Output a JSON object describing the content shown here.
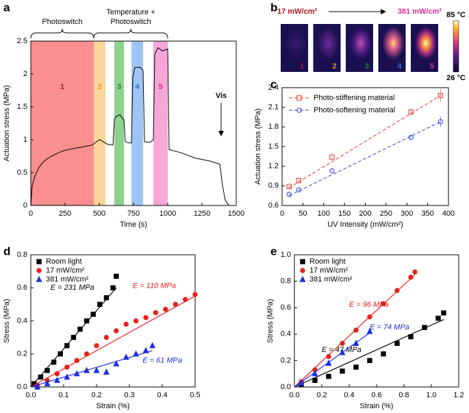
{
  "chart_data": [
    {
      "type": "line",
      "panel": "a",
      "xlabel": "Time (s)",
      "ylabel": "Actuation stress (MPa)",
      "xlim": [
        0,
        1500
      ],
      "xticks": [
        0,
        250,
        500,
        750,
        1000,
        1250,
        1500
      ],
      "ylim": [
        0,
        2.5
      ],
      "yticks": [
        0,
        0.5,
        1.0,
        1.5,
        2.0,
        2.5
      ],
      "color": "#000000",
      "x": [
        0,
        10,
        30,
        60,
        100,
        150,
        200,
        250,
        300,
        350,
        400,
        450,
        480,
        500,
        520,
        545,
        560,
        600,
        610,
        620,
        650,
        680,
        690,
        720,
        735,
        745,
        760,
        800,
        820,
        830,
        870,
        895,
        905,
        930,
        960,
        1000,
        1010,
        1100,
        1200,
        1300,
        1380,
        1400,
        1420,
        1440,
        1450
      ],
      "values": [
        0,
        0.3,
        0.45,
        0.58,
        0.68,
        0.75,
        0.8,
        0.84,
        0.86,
        0.88,
        0.9,
        0.92,
        0.97,
        1.0,
        0.98,
        0.95,
        0.93,
        0.92,
        1.3,
        1.35,
        1.38,
        1.3,
        0.97,
        0.95,
        0.95,
        1.95,
        2.1,
        2.1,
        2.05,
        0.97,
        0.96,
        1.0,
        2.3,
        2.4,
        2.35,
        2.38,
        0.85,
        0.8,
        0.72,
        0.68,
        0.63,
        0.3,
        0.08,
        0.02,
        0.0
      ],
      "regions": [
        {
          "label": "1",
          "x": [
            0,
            460
          ],
          "color": "#f98f8f",
          "label_color": "#b0151a"
        },
        {
          "label": "2",
          "x": [
            460,
            545
          ],
          "color": "#fbd59a",
          "label_color": "#e89a1a"
        },
        {
          "label": "3",
          "x": [
            610,
            680
          ],
          "color": "#8fd18f",
          "label_color": "#1a8a1a"
        },
        {
          "label": "4",
          "x": [
            735,
            820
          ],
          "color": "#9fc4f5",
          "label_color": "#2a6fd6"
        },
        {
          "label": "5",
          "x": [
            895,
            1000
          ],
          "color": "#f7a6d6",
          "label_color": "#d0309a"
        }
      ],
      "annotations": [
        "Photoswitch",
        "Temperature +",
        "Photoswitch",
        "Vis"
      ]
    },
    {
      "type": "image",
      "panel": "b",
      "low_label": "17 mW/cm²",
      "high_label": "381 mW/cm²",
      "images": [
        "1",
        "2",
        "3",
        "4",
        "5"
      ],
      "image_label_colors": [
        "#b0151a",
        "#e89a1a",
        "#1a8a1a",
        "#2a6fd6",
        "#d0309a"
      ],
      "colorbar_labels": [
        "85 °C",
        "26 °C"
      ]
    },
    {
      "type": "errorline",
      "panel": "c",
      "xlabel": "UV Intensity (mW/cm²)",
      "ylabel": "Actuation stress (MPa)",
      "xlim": [
        0,
        400
      ],
      "xticks": [
        0,
        50,
        100,
        150,
        200,
        250,
        300,
        350,
        400
      ],
      "ylim": [
        0.6,
        2.4
      ],
      "yticks": [
        0.6,
        0.9,
        1.2,
        1.5,
        1.8,
        2.1,
        2.4
      ],
      "series": [
        {
          "name": "Photo-stiffening material",
          "color": "#e8312b",
          "marker": "square",
          "x": [
            17,
            40,
            120,
            310,
            381
          ],
          "values": [
            0.89,
            0.98,
            1.34,
            2.03,
            2.28
          ],
          "errors": [
            0.02,
            0.02,
            0.02,
            0.05,
            0.1
          ],
          "fit": {
            "x": [
              17,
              381
            ],
            "values": [
              0.87,
              2.28
            ]
          }
        },
        {
          "name": "Photo-softening material",
          "color": "#2b3fd8",
          "marker": "circle",
          "x": [
            17,
            40,
            120,
            310,
            381
          ],
          "values": [
            0.77,
            0.84,
            1.13,
            1.64,
            1.88
          ],
          "errors": [
            0.02,
            0.02,
            0.02,
            0.03,
            0.08
          ],
          "fit": {
            "x": [
              17,
              381
            ],
            "values": [
              0.75,
              1.88
            ]
          }
        }
      ]
    },
    {
      "type": "scatter",
      "panel": "d",
      "xlabel": "Strain (%)",
      "ylabel": "Stress (MPa)",
      "xlim": [
        0,
        0.5
      ],
      "xticks": [
        {
          "value": 0,
          "label": "0.0"
        },
        0.1,
        0.2,
        0.3,
        0.4,
        0.5
      ],
      "ylim": [
        0,
        0.8
      ],
      "yticks": [
        {
          "value": 0,
          "label": "0.0"
        },
        0.2,
        0.4,
        0.6,
        0.8
      ],
      "series": [
        {
          "name": "Room light",
          "color": "#000000",
          "marker": "square",
          "annotation": "E = 231 MPa",
          "x": [
            0.01,
            0.03,
            0.05,
            0.07,
            0.09,
            0.11,
            0.13,
            0.15,
            0.17,
            0.19,
            0.21,
            0.23,
            0.25,
            0.26
          ],
          "values": [
            0.02,
            0.06,
            0.1,
            0.15,
            0.2,
            0.25,
            0.3,
            0.35,
            0.4,
            0.44,
            0.5,
            0.54,
            0.6,
            0.67
          ],
          "fit": {
            "x": [
              0,
              0.26
            ],
            "values": [
              0,
              0.6
            ]
          }
        },
        {
          "name": "17 mW/cm²",
          "color": "#e8211b",
          "marker": "circle",
          "annotation": "E = 110 MPa",
          "x": [
            0.02,
            0.05,
            0.08,
            0.11,
            0.14,
            0.17,
            0.2,
            0.23,
            0.26,
            0.29,
            0.32,
            0.35,
            0.38,
            0.41,
            0.44,
            0.47,
            0.5
          ],
          "values": [
            0.01,
            0.04,
            0.08,
            0.12,
            0.16,
            0.2,
            0.25,
            0.3,
            0.34,
            0.38,
            0.4,
            0.42,
            0.45,
            0.47,
            0.5,
            0.53,
            0.56
          ],
          "fit": {
            "x": [
              0,
              0.5
            ],
            "values": [
              0,
              0.55
            ]
          }
        },
        {
          "name": "381 mW/cm²",
          "color": "#1f2fe0",
          "marker": "triangle",
          "annotation": "E = 61 MPa",
          "x": [
            0.02,
            0.05,
            0.08,
            0.11,
            0.14,
            0.17,
            0.2,
            0.23,
            0.26,
            0.29,
            0.32,
            0.35,
            0.37
          ],
          "values": [
            0.0,
            0.02,
            0.04,
            0.06,
            0.08,
            0.1,
            0.1,
            0.09,
            0.14,
            0.18,
            0.2,
            0.22,
            0.25
          ],
          "fit": {
            "x": [
              0,
              0.37
            ],
            "values": [
              0,
              0.22
            ]
          }
        }
      ]
    },
    {
      "type": "scatter",
      "panel": "e",
      "xlabel": "Strain (%)",
      "ylabel": "Stress (MPa)",
      "xlim": [
        0,
        1.2
      ],
      "xticks": [
        {
          "value": 0,
          "label": "0.0"
        },
        0.2,
        0.4,
        0.6,
        0.8,
        {
          "value": 1,
          "label": "1.0"
        },
        1.2
      ],
      "ylim": [
        0,
        1.0
      ],
      "yticks": [
        {
          "value": 0,
          "label": "0.0"
        },
        0.2,
        0.4,
        0.6,
        0.8,
        {
          "value": 1,
          "label": "1.0"
        }
      ],
      "series": [
        {
          "name": "Room light",
          "color": "#000000",
          "marker": "square",
          "annotation": "E = 47 MPa",
          "x": [
            0.05,
            0.15,
            0.25,
            0.35,
            0.45,
            0.55,
            0.65,
            0.75,
            0.85,
            0.95,
            1.05,
            1.09
          ],
          "values": [
            0.02,
            0.05,
            0.08,
            0.12,
            0.15,
            0.2,
            0.25,
            0.33,
            0.38,
            0.45,
            0.52,
            0.56
          ],
          "fit": {
            "x": [
              0,
              1.09
            ],
            "values": [
              0,
              0.51
            ]
          }
        },
        {
          "name": "17 mW/cm²",
          "color": "#e8211b",
          "marker": "circle",
          "annotation": "E = 96 MPa",
          "x": [
            0.05,
            0.15,
            0.25,
            0.35,
            0.45,
            0.55,
            0.65,
            0.75,
            0.85,
            0.88
          ],
          "values": [
            0.04,
            0.13,
            0.23,
            0.33,
            0.43,
            0.53,
            0.63,
            0.73,
            0.83,
            0.87
          ],
          "fit": {
            "x": [
              0,
              0.88
            ],
            "values": [
              0,
              0.85
            ]
          }
        },
        {
          "name": "381 mW/cm²",
          "color": "#1f2fe0",
          "marker": "triangle",
          "annotation": "E = 74 MPa",
          "x": [
            0.05,
            0.15,
            0.25,
            0.35,
            0.45,
            0.55
          ],
          "values": [
            0.03,
            0.1,
            0.18,
            0.26,
            0.33,
            0.42
          ],
          "fit": {
            "x": [
              0,
              0.55
            ],
            "values": [
              0,
              0.41
            ]
          }
        }
      ]
    }
  ]
}
